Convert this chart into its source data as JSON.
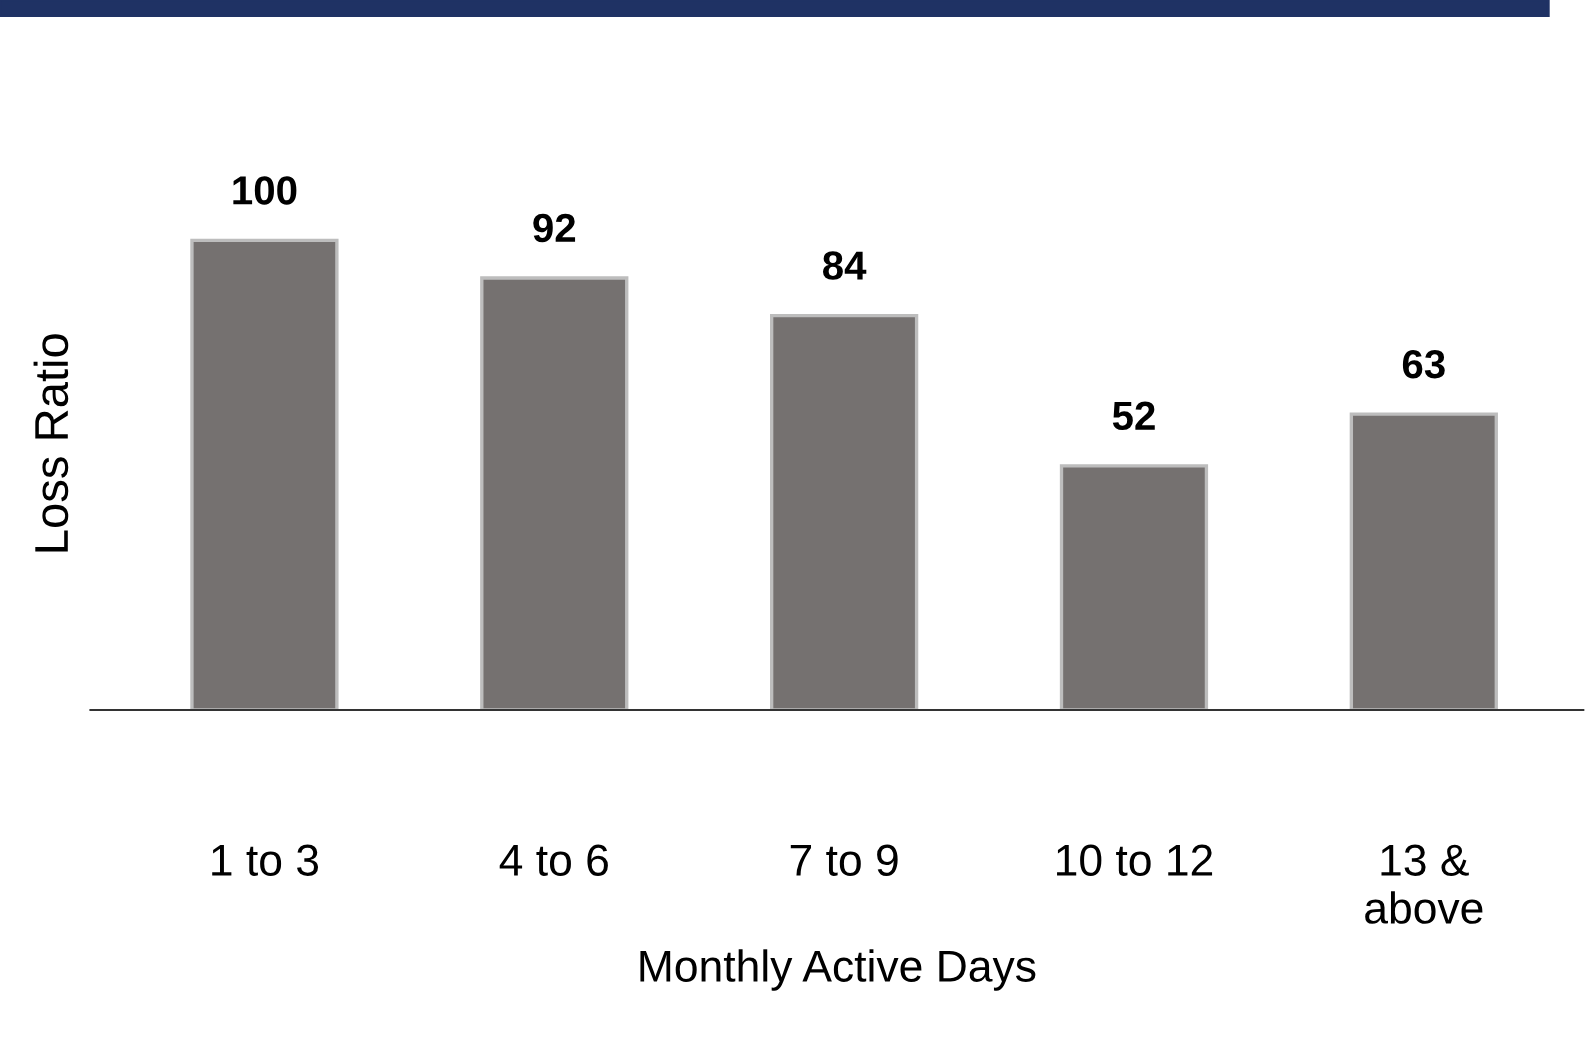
{
  "chart_data": {
    "type": "bar",
    "categories": [
      "1 to 3",
      "4 to 6",
      "7 to 9",
      "10 to 12",
      "13 &\nabove"
    ],
    "values": [
      100,
      92,
      84,
      52,
      63
    ],
    "color": "#757170",
    "tick_labels": "x",
    "data_labels": true,
    "xlabel": "Monthly Active Days",
    "ylabel": "Loss Ratio",
    "grid": false,
    "legend": false
  }
}
